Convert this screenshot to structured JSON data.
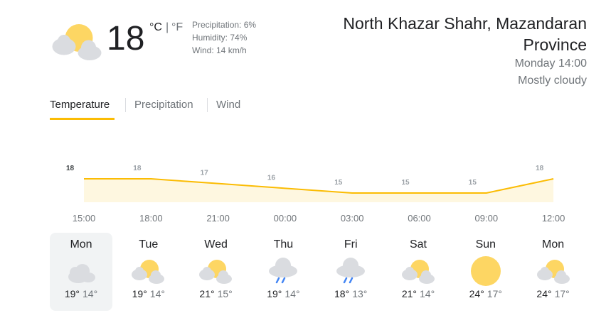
{
  "current": {
    "temperature": "18",
    "unit_c": "°C",
    "unit_sep": "|",
    "unit_f": "°F",
    "precipitation": "Precipitation: 6%",
    "humidity": "Humidity: 74%",
    "wind": "Wind: 14 km/h"
  },
  "location": {
    "name": "North Khazar Shahr, Mazandaran Province",
    "time": "Monday 14:00",
    "condition": "Mostly cloudy"
  },
  "tabs": [
    "Temperature",
    "Precipitation",
    "Wind"
  ],
  "chart_data": {
    "type": "area",
    "categories": [
      "15:00",
      "18:00",
      "21:00",
      "00:00",
      "03:00",
      "06:00",
      "09:00",
      "12:00"
    ],
    "values": [
      18,
      18,
      17,
      16,
      15,
      15,
      15,
      18
    ],
    "color": "#fbbc04",
    "fill": "#fef7e0"
  },
  "forecast": [
    {
      "day": "Mon",
      "high": "19°",
      "low": "14°"
    },
    {
      "day": "Tue",
      "high": "19°",
      "low": "14°"
    },
    {
      "day": "Wed",
      "high": "21°",
      "low": "15°"
    },
    {
      "day": "Thu",
      "high": "19°",
      "low": "14°"
    },
    {
      "day": "Fri",
      "high": "18°",
      "low": "13°"
    },
    {
      "day": "Sat",
      "high": "21°",
      "low": "14°"
    },
    {
      "day": "Sun",
      "high": "24°",
      "low": "17°"
    },
    {
      "day": "Mon",
      "high": "24°",
      "low": "17°"
    }
  ]
}
